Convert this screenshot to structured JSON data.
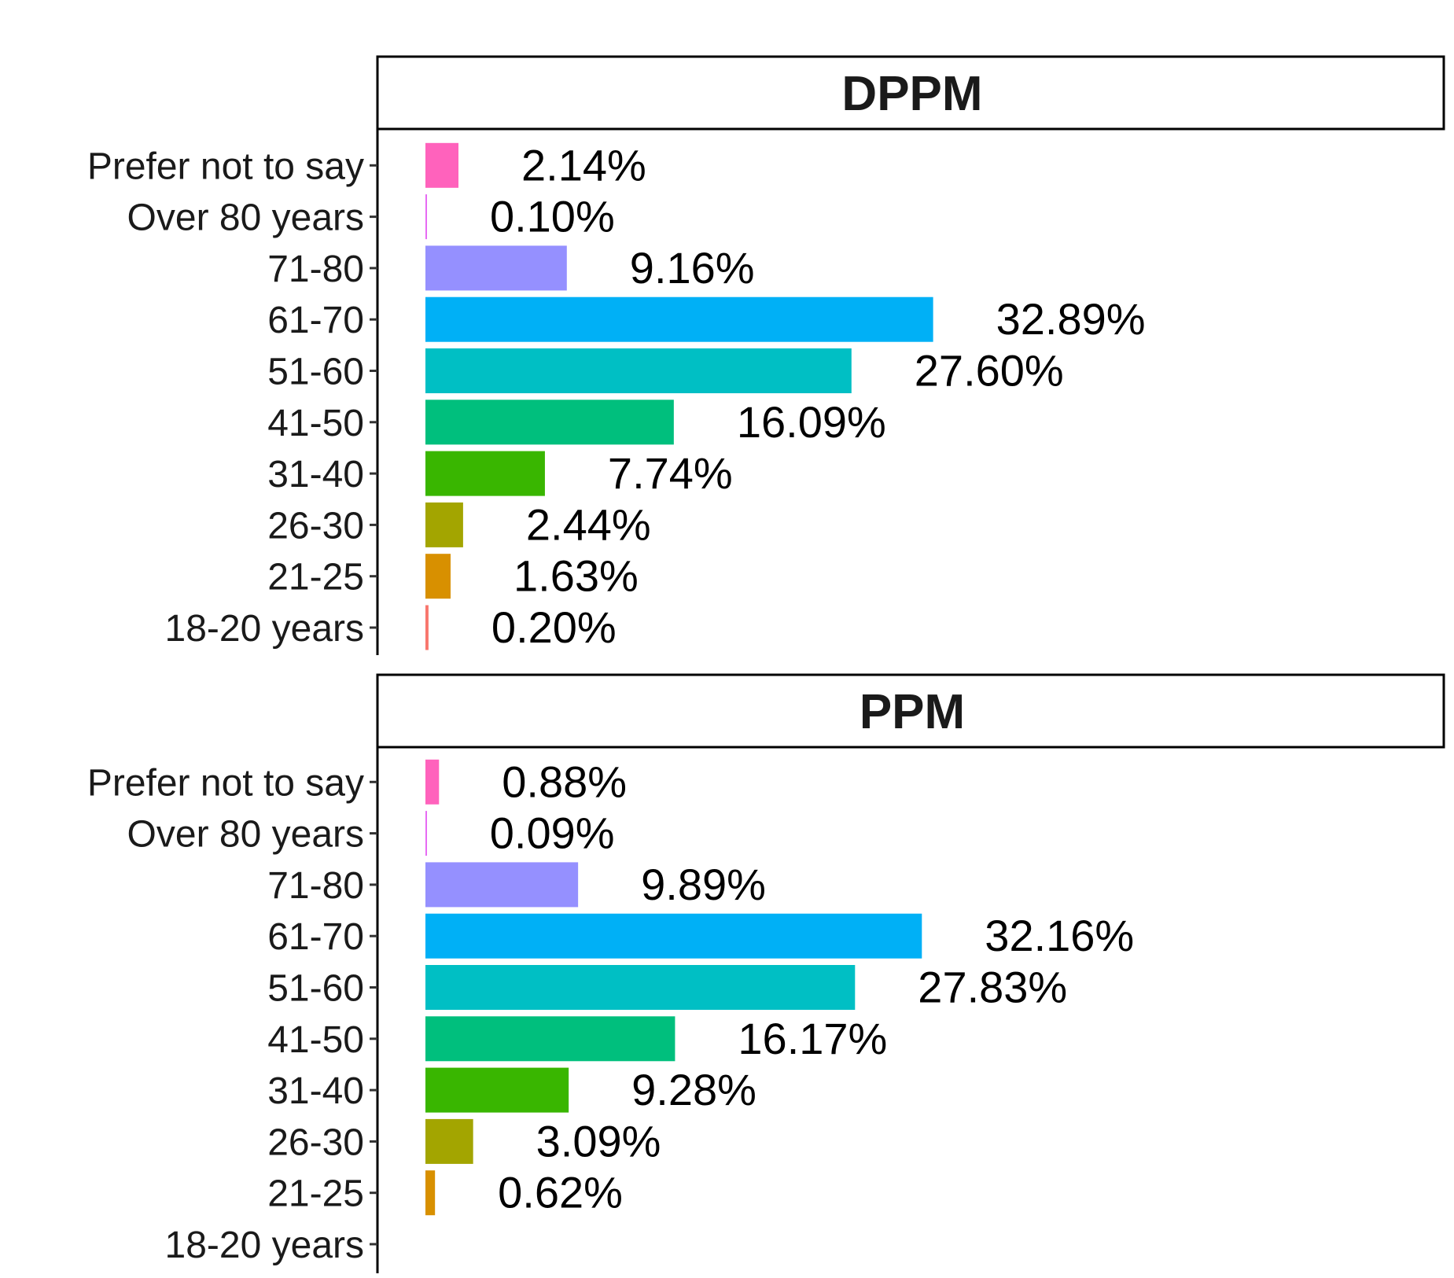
{
  "chart_data": [
    {
      "type": "bar",
      "orientation": "horizontal",
      "title": "DPPM",
      "categories": [
        "18-20 years",
        "21-25",
        "26-30",
        "31-40",
        "41-50",
        "51-60",
        "61-70",
        "71-80",
        "Over 80 years",
        "Prefer not to say"
      ],
      "values": [
        0.2,
        1.63,
        2.44,
        7.74,
        16.09,
        27.6,
        32.89,
        9.16,
        0.1,
        2.14
      ],
      "value_labels": [
        "0.20%",
        "1.63%",
        "2.44%",
        "7.74%",
        "16.09%",
        "27.60%",
        "32.89%",
        "9.16%",
        "0.10%",
        "2.14%"
      ],
      "xlim": [
        0,
        65
      ],
      "grid": false,
      "legend": "none"
    },
    {
      "type": "bar",
      "orientation": "horizontal",
      "title": "PPM",
      "categories": [
        "18-20 years",
        "21-25",
        "26-30",
        "31-40",
        "41-50",
        "51-60",
        "61-70",
        "71-80",
        "Over 80 years",
        "Prefer not to say"
      ],
      "values": [
        0,
        0.62,
        3.09,
        9.28,
        16.17,
        27.83,
        32.16,
        9.89,
        0.09,
        0.88
      ],
      "value_labels": [
        "",
        "0.62%",
        "3.09%",
        "9.28%",
        "16.17%",
        "27.83%",
        "32.16%",
        "9.89%",
        "0.09%",
        "0.88%"
      ],
      "xlim": [
        0,
        65
      ],
      "grid": false,
      "legend": "none"
    }
  ],
  "colors": [
    "#F8766D",
    "#D89000",
    "#A3A500",
    "#39B600",
    "#00BF7D",
    "#00BFC4",
    "#00B0F6",
    "#9590FF",
    "#E76BF3",
    "#FF62BC"
  ]
}
